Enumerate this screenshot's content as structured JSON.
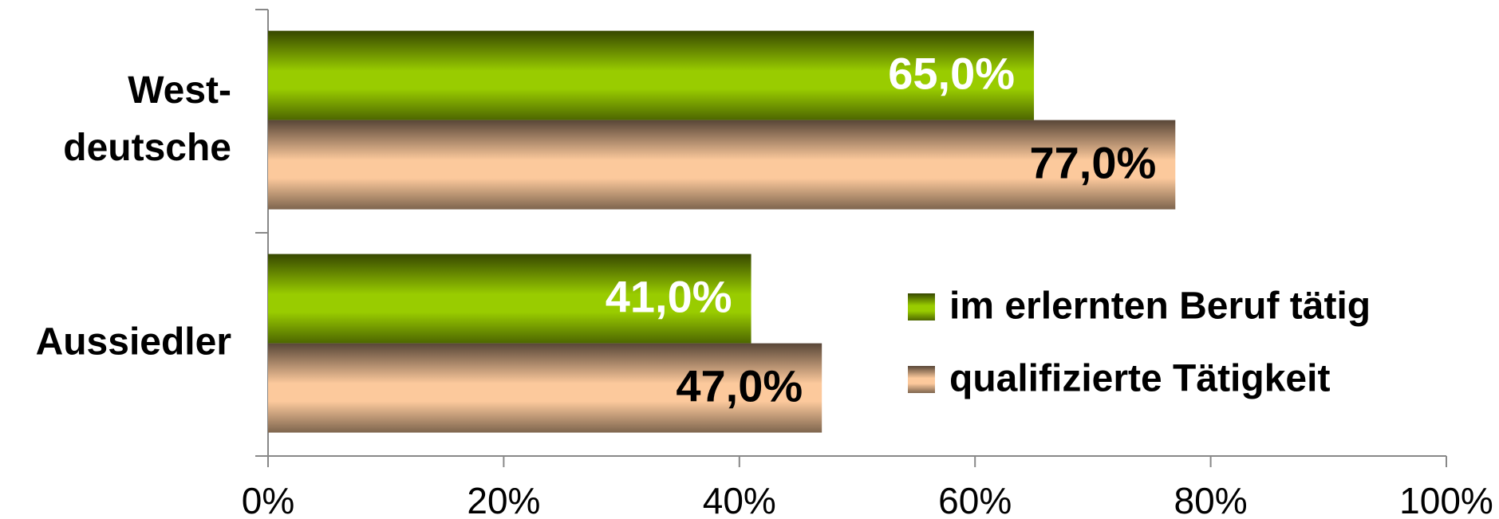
{
  "chart_data": {
    "type": "hbar",
    "categories": [
      "West-\ndeutsche",
      "Aussiedler"
    ],
    "series": [
      {
        "name": "im erlernten Beruf tätig",
        "color": "#99cc00",
        "label_color": "#ffffff",
        "values": [
          65,
          41
        ],
        "value_labels": [
          "65,0%",
          "41,0%"
        ]
      },
      {
        "name": "qualifizierte Tätigkeit",
        "color": "#fcc99c",
        "label_color": "#000000",
        "values": [
          77,
          47
        ],
        "value_labels": [
          "77,0%",
          "47,0%"
        ]
      }
    ],
    "xlim": [
      0,
      100
    ],
    "xticks": [
      {
        "value": 0,
        "label": "0%"
      },
      {
        "value": 20,
        "label": "20%"
      },
      {
        "value": 40,
        "label": "40%"
      },
      {
        "value": 60,
        "label": "60%"
      },
      {
        "value": 80,
        "label": "80%"
      },
      {
        "value": 100,
        "label": "100%"
      }
    ],
    "legend": "right"
  }
}
